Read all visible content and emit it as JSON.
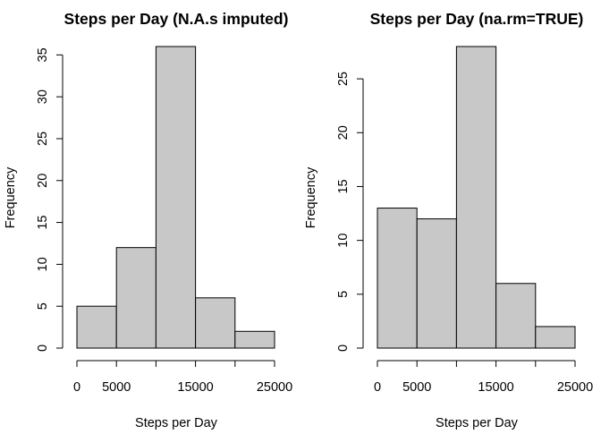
{
  "chart_data": [
    {
      "type": "bar",
      "title": "Steps per Day (N.A.s imputed)",
      "xlabel": "Steps per Day",
      "ylabel": "Frequency",
      "bins": [
        [
          0,
          5000
        ],
        [
          5000,
          10000
        ],
        [
          10000,
          15000
        ],
        [
          15000,
          20000
        ],
        [
          20000,
          25000
        ]
      ],
      "values": [
        5,
        12,
        36,
        6,
        2
      ],
      "xlim": [
        0,
        25000
      ],
      "ylim": [
        0,
        36
      ],
      "x_ticks": [
        0,
        5000,
        10000,
        15000,
        20000,
        25000
      ],
      "x_tick_labels": [
        "0",
        "5000",
        "",
        "15000",
        "",
        "25000"
      ],
      "y_ticks": [
        0,
        5,
        10,
        15,
        20,
        25,
        30,
        35
      ],
      "y_tick_labels": [
        "0",
        "5",
        "10",
        "15",
        "20",
        "25",
        "30",
        "35"
      ],
      "bar_color": "#c8c8c8",
      "grid": false
    },
    {
      "type": "bar",
      "title": "Steps per Day (na.rm=TRUE)",
      "xlabel": "Steps per Day",
      "ylabel": "Frequency",
      "bins": [
        [
          0,
          5000
        ],
        [
          5000,
          10000
        ],
        [
          10000,
          15000
        ],
        [
          15000,
          20000
        ],
        [
          20000,
          25000
        ]
      ],
      "values": [
        13,
        12,
        28,
        6,
        2
      ],
      "xlim": [
        0,
        25000
      ],
      "ylim": [
        0,
        28
      ],
      "x_ticks": [
        0,
        5000,
        10000,
        15000,
        20000,
        25000
      ],
      "x_tick_labels": [
        "0",
        "5000",
        "",
        "15000",
        "",
        "25000"
      ],
      "y_ticks": [
        0,
        5,
        10,
        15,
        20,
        25
      ],
      "y_tick_labels": [
        "0",
        "5",
        "10",
        "15",
        "20",
        "25"
      ],
      "bar_color": "#c8c8c8",
      "grid": false
    }
  ]
}
